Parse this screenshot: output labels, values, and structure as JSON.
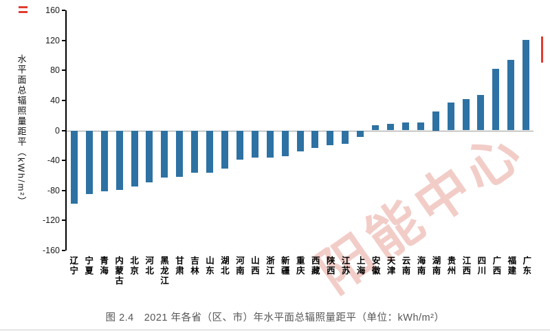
{
  "page": {
    "caption": "图 2.4　2021 年各省（区、市）年水平面总辐照量距平（单位：kWh/m²）",
    "watermark": "阳能中心",
    "accent_color": "#2d72a3",
    "mark_color": "#e23b2e"
  },
  "chart_data": {
    "type": "bar",
    "title": "2021 年各省（区、市）年水平面总辐照量距平",
    "unit": "kWh/m²",
    "xlabel": "",
    "ylabel": "水平面总辐照量距平（kWh/m²）",
    "ylim": [
      -160,
      160
    ],
    "yticks": [
      160,
      120,
      80,
      40,
      0,
      -40,
      -80,
      -120,
      -160
    ],
    "grid": false,
    "legend": false,
    "bar_color": "#2d72a3",
    "categories": [
      "辽宁",
      "宁夏",
      "青海",
      "内蒙古",
      "北京",
      "河北",
      "黑龙江",
      "甘肃",
      "吉林",
      "山东",
      "湖北",
      "河南",
      "山西",
      "浙江",
      "新疆",
      "重庆",
      "西藏",
      "陕西",
      "江苏",
      "上海",
      "安徽",
      "天津",
      "云南",
      "海南",
      "湖南",
      "贵州",
      "江西",
      "四川",
      "广西",
      "福建",
      "广东"
    ],
    "values": [
      -98,
      -85,
      -81,
      -79,
      -75,
      -69,
      -63,
      -62,
      -56,
      -56,
      -51,
      -39,
      -36,
      -36,
      -34,
      -28,
      -23,
      -20,
      -18,
      -9,
      7,
      9,
      11,
      11,
      25,
      37,
      42,
      47,
      82,
      94,
      121
    ]
  }
}
